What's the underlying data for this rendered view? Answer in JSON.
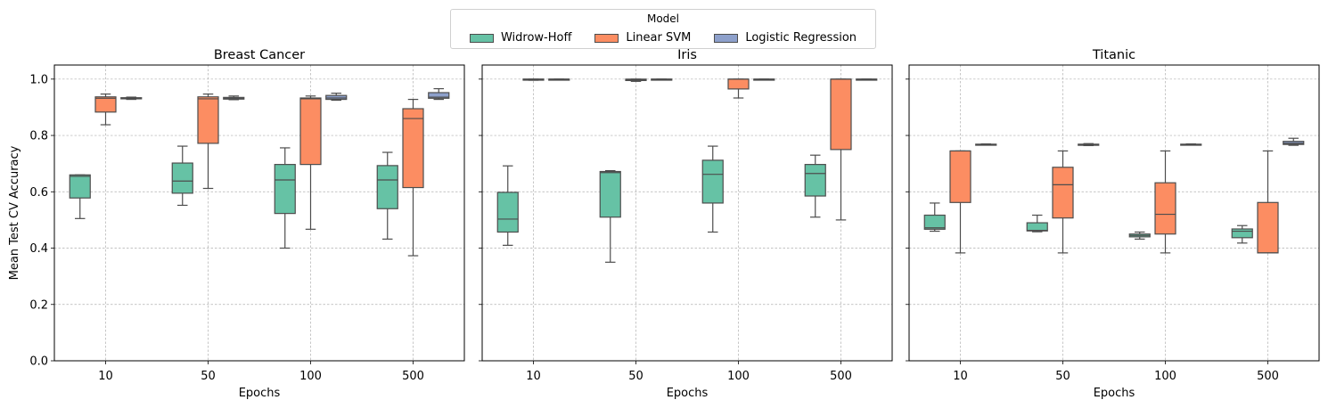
{
  "legend": {
    "title": "Model",
    "entries": [
      {
        "label": "Widrow-Hoff",
        "color": "#66c2a5"
      },
      {
        "label": "Linear SVM",
        "color": "#fc8d62"
      },
      {
        "label": "Logistic Regression",
        "color": "#8da0cb"
      }
    ]
  },
  "chart_data": [
    {
      "type": "box",
      "title": "Breast Cancer",
      "xlabel": "Epochs",
      "ylabel": "Mean Test CV Accuracy",
      "categories": [
        "10",
        "50",
        "100",
        "500"
      ],
      "ylim": [
        0,
        1.05
      ],
      "yticks": [
        "0.0",
        "0.2",
        "0.4",
        "0.6",
        "0.8",
        "1.0"
      ],
      "grid": true,
      "series": [
        {
          "name": "Widrow-Hoff",
          "boxes": [
            {
              "min": 0.505,
              "q1": 0.578,
              "median": 0.655,
              "q3": 0.66,
              "max": 0.66
            },
            {
              "min": 0.552,
              "q1": 0.595,
              "median": 0.638,
              "q3": 0.702,
              "max": 0.762
            },
            {
              "min": 0.4,
              "q1": 0.523,
              "median": 0.642,
              "q3": 0.697,
              "max": 0.756
            },
            {
              "min": 0.432,
              "q1": 0.54,
              "median": 0.642,
              "q3": 0.693,
              "max": 0.74
            }
          ]
        },
        {
          "name": "Linear SVM",
          "boxes": [
            {
              "min": 0.838,
              "q1": 0.883,
              "median": 0.932,
              "q3": 0.937,
              "max": 0.947
            },
            {
              "min": 0.612,
              "q1": 0.772,
              "median": 0.93,
              "q3": 0.937,
              "max": 0.947
            },
            {
              "min": 0.467,
              "q1": 0.697,
              "median": 0.93,
              "q3": 0.933,
              "max": 0.94
            },
            {
              "min": 0.373,
              "q1": 0.615,
              "median": 0.86,
              "q3": 0.895,
              "max": 0.928
            }
          ]
        },
        {
          "name": "Logistic Regression",
          "boxes": [
            {
              "min": 0.928,
              "q1": 0.93,
              "median": 0.932,
              "q3": 0.934,
              "max": 0.936
            },
            {
              "min": 0.927,
              "q1": 0.929,
              "median": 0.932,
              "q3": 0.935,
              "max": 0.94
            },
            {
              "min": 0.925,
              "q1": 0.928,
              "median": 0.933,
              "q3": 0.942,
              "max": 0.95
            },
            {
              "min": 0.928,
              "q1": 0.932,
              "median": 0.936,
              "q3": 0.952,
              "max": 0.966
            }
          ]
        }
      ]
    },
    {
      "type": "box",
      "title": "Iris",
      "xlabel": "Epochs",
      "ylabel": "",
      "categories": [
        "10",
        "50",
        "100",
        "500"
      ],
      "ylim": [
        0,
        1.05
      ],
      "grid": true,
      "series": [
        {
          "name": "Widrow-Hoff",
          "boxes": [
            {
              "min": 0.41,
              "q1": 0.457,
              "median": 0.503,
              "q3": 0.598,
              "max": 0.692
            },
            {
              "min": 0.35,
              "q1": 0.51,
              "median": 0.668,
              "q3": 0.672,
              "max": 0.675
            },
            {
              "min": 0.457,
              "q1": 0.56,
              "median": 0.662,
              "q3": 0.712,
              "max": 0.762
            },
            {
              "min": 0.51,
              "q1": 0.585,
              "median": 0.665,
              "q3": 0.697,
              "max": 0.73
            }
          ]
        },
        {
          "name": "Linear SVM",
          "boxes": [
            {
              "min": 0.996,
              "q1": 0.998,
              "median": 1.0,
              "q3": 1.0,
              "max": 1.0
            },
            {
              "min": 0.992,
              "q1": 0.995,
              "median": 0.998,
              "q3": 1.0,
              "max": 1.0
            },
            {
              "min": 0.933,
              "q1": 0.965,
              "median": 1.0,
              "q3": 1.0,
              "max": 1.0
            },
            {
              "min": 0.5,
              "q1": 0.75,
              "median": 1.0,
              "q3": 1.0,
              "max": 1.0
            }
          ]
        },
        {
          "name": "Logistic Regression",
          "boxes": [
            {
              "min": 1.0,
              "q1": 1.0,
              "median": 1.0,
              "q3": 1.0,
              "max": 1.0
            },
            {
              "min": 1.0,
              "q1": 1.0,
              "median": 1.0,
              "q3": 1.0,
              "max": 1.0
            },
            {
              "min": 1.0,
              "q1": 1.0,
              "median": 1.0,
              "q3": 1.0,
              "max": 1.0
            },
            {
              "min": 1.0,
              "q1": 1.0,
              "median": 1.0,
              "q3": 1.0,
              "max": 1.0
            }
          ]
        }
      ]
    },
    {
      "type": "box",
      "title": "Titanic",
      "xlabel": "Epochs",
      "ylabel": "",
      "categories": [
        "10",
        "50",
        "100",
        "500"
      ],
      "ylim": [
        0,
        1.05
      ],
      "grid": true,
      "series": [
        {
          "name": "Widrow-Hoff",
          "boxes": [
            {
              "min": 0.46,
              "q1": 0.467,
              "median": 0.472,
              "q3": 0.517,
              "max": 0.56
            },
            {
              "min": 0.458,
              "q1": 0.461,
              "median": 0.463,
              "q3": 0.49,
              "max": 0.517
            },
            {
              "min": 0.432,
              "q1": 0.44,
              "median": 0.445,
              "q3": 0.45,
              "max": 0.457
            },
            {
              "min": 0.418,
              "q1": 0.437,
              "median": 0.46,
              "q3": 0.468,
              "max": 0.48
            }
          ]
        },
        {
          "name": "Linear SVM",
          "boxes": [
            {
              "min": 0.383,
              "q1": 0.562,
              "median": 0.745,
              "q3": 0.745,
              "max": 0.745
            },
            {
              "min": 0.383,
              "q1": 0.507,
              "median": 0.625,
              "q3": 0.687,
              "max": 0.745
            },
            {
              "min": 0.383,
              "q1": 0.45,
              "median": 0.52,
              "q3": 0.632,
              "max": 0.745
            },
            {
              "min": 0.383,
              "q1": 0.383,
              "median": 0.383,
              "q3": 0.562,
              "max": 0.745
            }
          ]
        },
        {
          "name": "Logistic Regression",
          "boxes": [
            {
              "min": 0.766,
              "q1": 0.767,
              "median": 0.768,
              "q3": 0.769,
              "max": 0.77
            },
            {
              "min": 0.764,
              "q1": 0.765,
              "median": 0.767,
              "q3": 0.769,
              "max": 0.771
            },
            {
              "min": 0.766,
              "q1": 0.767,
              "median": 0.768,
              "q3": 0.769,
              "max": 0.77
            },
            {
              "min": 0.765,
              "q1": 0.768,
              "median": 0.772,
              "q3": 0.779,
              "max": 0.79
            }
          ]
        }
      ]
    }
  ]
}
